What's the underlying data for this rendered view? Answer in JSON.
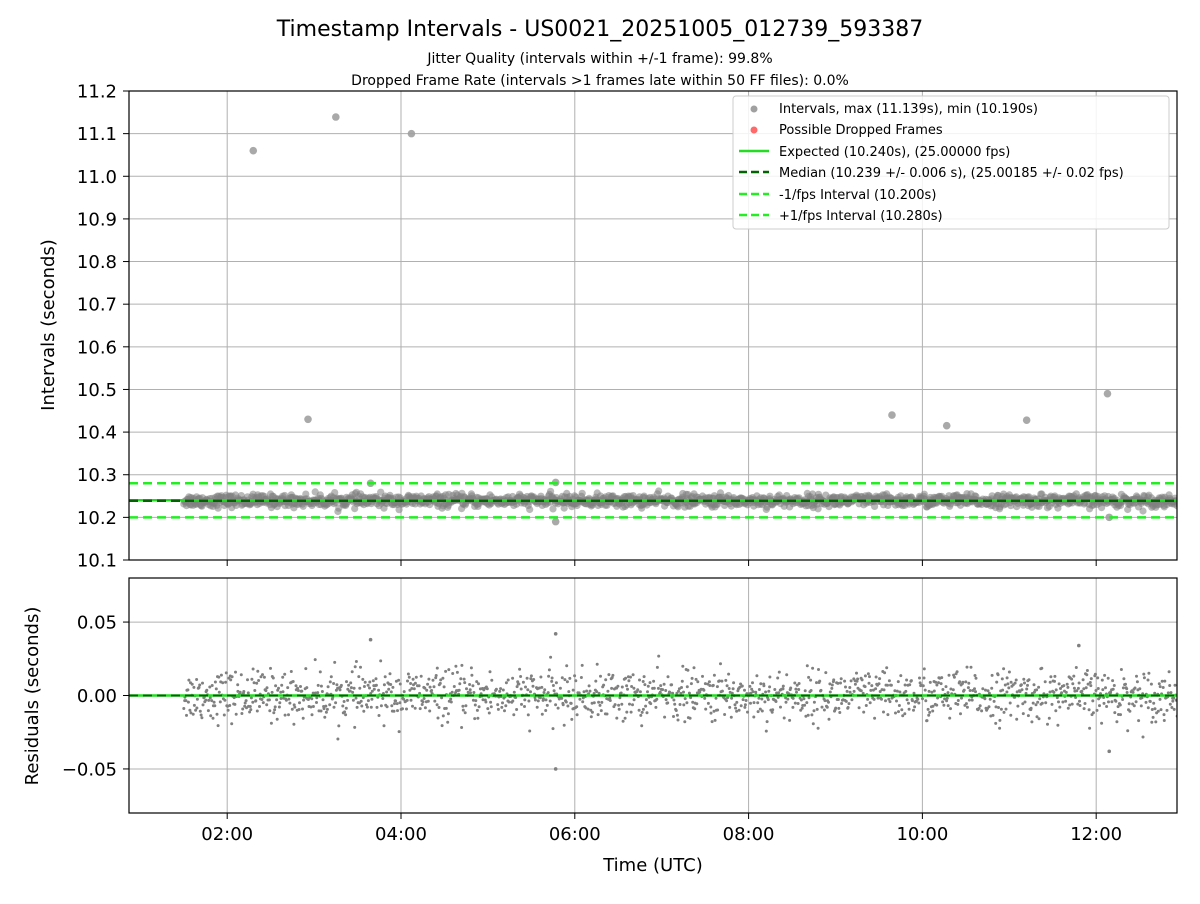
{
  "title": "Timestamp Intervals - US0021_20251005_012739_593387",
  "subtitle_1": "Jitter Quality (intervals within +/-1 frame): 99.8%",
  "subtitle_2": "Dropped Frame Rate (intervals >1 frames late within 50 FF files): 0.0%",
  "colors": {
    "points": "#808080",
    "expected": "#22dd22",
    "median": "#006400",
    "fps_bounds": "#22ee22",
    "dropped": "#ff4444",
    "grid": "#b0b0b0"
  },
  "chart_data": [
    {
      "type": "scatter",
      "panel": "intervals",
      "ylabel": "Intervals (seconds)",
      "xlim_hours": [
        0.87,
        12.93
      ],
      "ylim": [
        10.1,
        11.2
      ],
      "yticks": [
        10.1,
        10.2,
        10.3,
        10.4,
        10.5,
        10.6,
        10.7,
        10.8,
        10.9,
        11.0,
        11.1,
        11.2
      ],
      "ytick_labels": [
        "10.1",
        "10.2",
        "10.3",
        "10.4",
        "10.5",
        "10.6",
        "10.7",
        "10.8",
        "10.9",
        "11.0",
        "11.1",
        "11.2"
      ],
      "xticks_hours": [
        2,
        4,
        6,
        8,
        10,
        12
      ],
      "grid": true,
      "legend_position": "top-right",
      "legend": [
        {
          "label": "Intervals, max (11.139s), min (10.190s)",
          "marker": "dot",
          "color": "#a0a0a0"
        },
        {
          "label": "Possible Dropped Frames",
          "marker": "dot",
          "color": "#ff4444"
        },
        {
          "label": "Expected (10.240s), (25.00000 fps)",
          "marker": "solid",
          "color": "#22dd22"
        },
        {
          "label": "Median (10.239 +/- 0.006 s), (25.00185 +/- 0.02 fps)",
          "marker": "dashed",
          "color": "#006400"
        },
        {
          "label": "-1/fps Interval (10.200s)",
          "marker": "dashed",
          "color": "#22ee22"
        },
        {
          "label": "+1/fps Interval (10.280s)",
          "marker": "dashed",
          "color": "#22ee22"
        }
      ],
      "reference_lines": {
        "expected": 10.24,
        "median": 10.239,
        "minus_1_fps": 10.2,
        "plus_1_fps": 10.28
      },
      "series": [
        {
          "name": "Intervals, max (11.139s), min (10.190s)",
          "x_range_hours": [
            1.5,
            12.93
          ],
          "baseline": 10.239,
          "typical_spread": 0.012,
          "outliers": [
            {
              "x": 2.3,
              "y": 11.06
            },
            {
              "x": 2.93,
              "y": 10.43
            },
            {
              "x": 3.25,
              "y": 11.139
            },
            {
              "x": 3.65,
              "y": 10.28
            },
            {
              "x": 4.12,
              "y": 11.1
            },
            {
              "x": 5.78,
              "y": 10.19
            },
            {
              "x": 5.78,
              "y": 10.282
            },
            {
              "x": 9.65,
              "y": 10.44
            },
            {
              "x": 10.28,
              "y": 10.415
            },
            {
              "x": 11.2,
              "y": 10.428
            },
            {
              "x": 12.13,
              "y": 10.49
            },
            {
              "x": 12.15,
              "y": 10.2
            }
          ]
        }
      ]
    },
    {
      "type": "scatter",
      "panel": "residuals",
      "ylabel": "Residuals (seconds)",
      "xlabel": "Time (UTC)",
      "xlim_hours": [
        0.87,
        12.93
      ],
      "ylim": [
        -0.08,
        0.08
      ],
      "yticks": [
        -0.05,
        0.0,
        0.05
      ],
      "ytick_labels": [
        "−0.05",
        "0.00",
        "0.05"
      ],
      "xticks_hours": [
        2,
        4,
        6,
        8,
        10,
        12
      ],
      "xtick_labels": [
        "02:00",
        "04:00",
        "06:00",
        "08:00",
        "10:00",
        "12:00"
      ],
      "grid": true,
      "reference_lines": {
        "zero": 0.0
      },
      "series": [
        {
          "name": "",
          "x_range_hours": [
            1.5,
            12.93
          ],
          "typical_spread": 0.012,
          "outliers": [
            {
              "x": 3.65,
              "y": 0.038
            },
            {
              "x": 5.78,
              "y": 0.042
            },
            {
              "x": 5.78,
              "y": -0.05
            },
            {
              "x": 11.8,
              "y": 0.034
            },
            {
              "x": 12.15,
              "y": -0.038
            }
          ]
        }
      ]
    }
  ]
}
